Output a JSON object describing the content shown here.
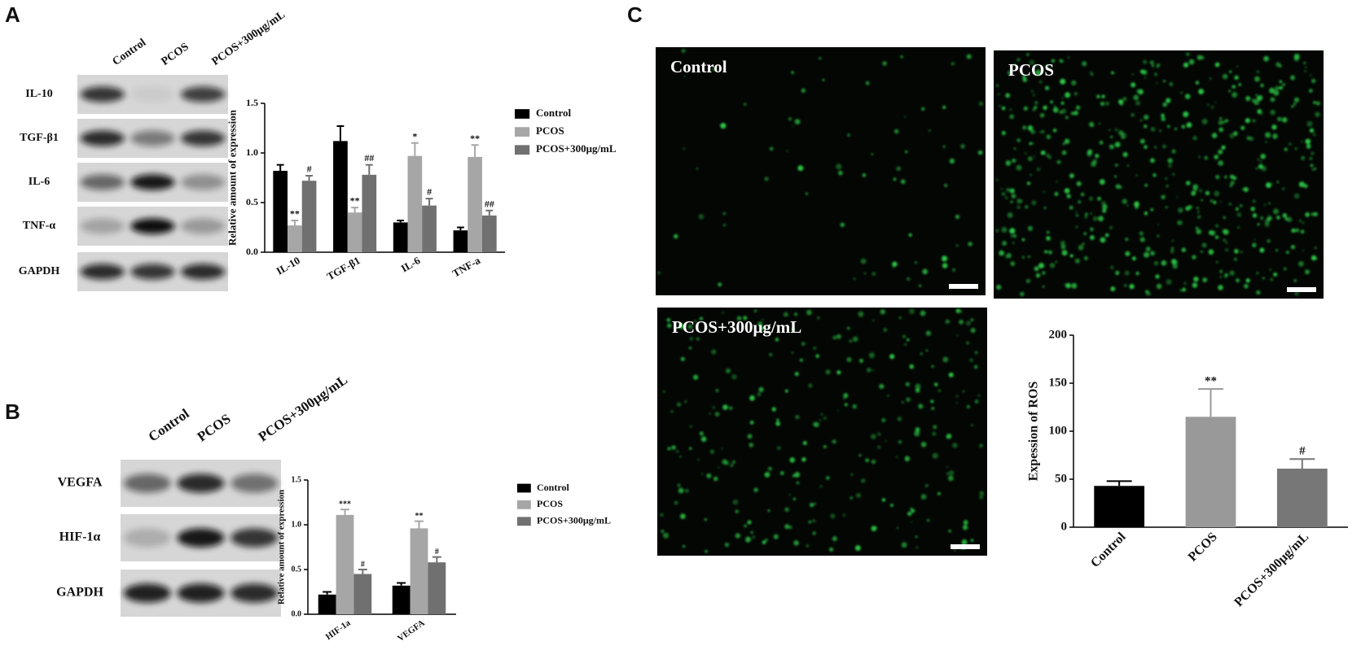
{
  "panel_labels": [
    "A",
    "B",
    "C"
  ],
  "blots": [
    {
      "lanes": [
        "Control",
        "PCOS",
        "PCOS+300μg/mL"
      ],
      "rows": [
        "IL-10",
        "TGF-β1",
        "IL-6",
        "TNF-α",
        "GAPDH"
      ]
    },
    {
      "lanes": [
        "Control",
        "PCOS",
        "PCOS+300μg/mL"
      ],
      "rows": [
        "VEGFA",
        "HIF-1α",
        "GAPDH"
      ]
    }
  ],
  "micrographs": [
    "Control",
    "PCOS",
    "PCOS+300μg/mL"
  ],
  "chart_data": [
    {
      "type": "bar",
      "ylabel": "Relative amount of expression",
      "categories": [
        "IL-10",
        "TGF-β1",
        "IL-6",
        "TNF-a"
      ],
      "ylim": [
        0,
        1.5
      ],
      "yticks": [
        {
          "value": 0,
          "label": "0.0"
        },
        0.5,
        {
          "value": 1,
          "label": "1.0"
        },
        1.5
      ],
      "series": [
        {
          "name": "Control",
          "color": "#000000",
          "values": [
            0.82,
            1.12,
            0.3,
            0.22
          ],
          "errors": [
            0.06,
            0.15,
            0.02,
            0.03
          ]
        },
        {
          "name": "PCOS",
          "color": "#a6a6a6",
          "values": [
            0.27,
            0.4,
            0.97,
            0.96
          ],
          "errors": [
            0.05,
            0.05,
            0.13,
            0.12
          ],
          "significance": [
            "**",
            "**",
            "*",
            "**"
          ]
        },
        {
          "name": "PCOS+300μg/mL",
          "color": "#707070",
          "values": [
            0.72,
            0.78,
            0.47,
            0.37
          ],
          "errors": [
            0.05,
            0.1,
            0.07,
            0.05
          ],
          "significance": [
            "#",
            "##",
            "#",
            "##"
          ]
        }
      ]
    },
    {
      "type": "bar",
      "ylabel": "Relative amount of expression",
      "categories": [
        "HIF-1a",
        "VEGFA"
      ],
      "ylim": [
        0,
        1.5
      ],
      "yticks": [
        {
          "value": 0,
          "label": "0.0"
        },
        0.5,
        {
          "value": 1,
          "label": "1.0"
        },
        1.5
      ],
      "series": [
        {
          "name": "Control",
          "color": "#000000",
          "values": [
            0.22,
            0.32
          ],
          "errors": [
            0.03,
            0.03
          ]
        },
        {
          "name": "PCOS",
          "color": "#a6a6a6",
          "values": [
            1.11,
            0.96
          ],
          "errors": [
            0.06,
            0.08
          ],
          "significance": [
            "***",
            "**"
          ]
        },
        {
          "name": "PCOS+300μg/mL",
          "color": "#707070",
          "values": [
            0.45,
            0.58
          ],
          "errors": [
            0.05,
            0.06
          ],
          "significance": [
            "#",
            "#"
          ]
        }
      ]
    },
    {
      "type": "bar",
      "ylabel": "Expession of ROS",
      "categories": [
        "Control",
        "PCOS",
        "PCOS+300μg/mL"
      ],
      "values": [
        43,
        115,
        61
      ],
      "errors": [
        5,
        29,
        10
      ],
      "significance": [
        null,
        "**",
        "#"
      ],
      "colors": [
        "#000000",
        "#999999",
        "#777777"
      ],
      "ylim": [
        0,
        200
      ],
      "yticks": [
        0,
        50,
        100,
        150,
        200
      ]
    }
  ]
}
